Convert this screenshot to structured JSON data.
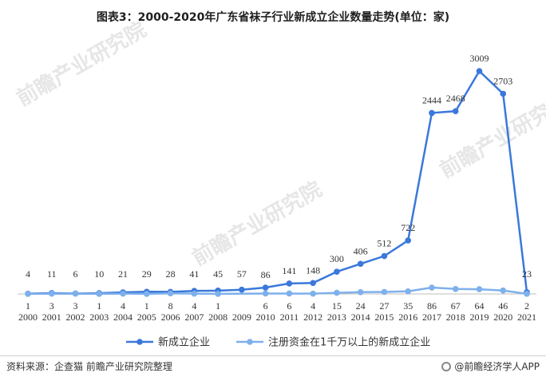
{
  "title": "图表3：2000-2020年广东省袜子行业新成立企业数量走势(单位：家)",
  "watermark": "前瞻产业研究院",
  "footer": {
    "source": "资料来源：企查猫 前瞻产业研究院整理",
    "brand": "@前瞻经济学人APP"
  },
  "chart_data": {
    "type": "line",
    "x": [
      "2000",
      "2001",
      "2002",
      "2003",
      "2004",
      "2005",
      "2006",
      "2007",
      "2008",
      "2009",
      "2010",
      "2011",
      "2012",
      "2013",
      "2014",
      "2015",
      "2016",
      "2017",
      "2018",
      "2019",
      "2020",
      "2021"
    ],
    "series": [
      {
        "name": "新成立企业",
        "color": "#3a78db",
        "values": [
          4,
          11,
          6,
          10,
          21,
          29,
          28,
          41,
          45,
          57,
          86,
          141,
          148,
          300,
          406,
          512,
          722,
          2444,
          2468,
          3009,
          2703,
          23
        ],
        "labels": [
          "4",
          "11",
          "6",
          "10",
          "21",
          "29",
          "28",
          "41",
          "45",
          "57",
          "86",
          "141",
          "148",
          "300",
          "406",
          "512",
          "722",
          "2444",
          "2468",
          "3009",
          "2703",
          "23"
        ]
      },
      {
        "name": "注册资金在1千万以上的新成立企业",
        "color": "#7eb0ec",
        "values": [
          1,
          3,
          3,
          1,
          4,
          1,
          8,
          4,
          1,
          null,
          6,
          6,
          4,
          15,
          24,
          27,
          35,
          86,
          67,
          64,
          46,
          2
        ],
        "labels": [
          "1",
          "3",
          "3",
          "1",
          "4",
          "1",
          "8",
          "4",
          "1",
          "",
          "6",
          "6",
          "4",
          "15",
          "24",
          "27",
          "35",
          "86",
          "67",
          "64",
          "46",
          "2"
        ]
      }
    ],
    "ylim": [
      0,
      3300
    ],
    "grid": false,
    "legend_position": "bottom"
  }
}
